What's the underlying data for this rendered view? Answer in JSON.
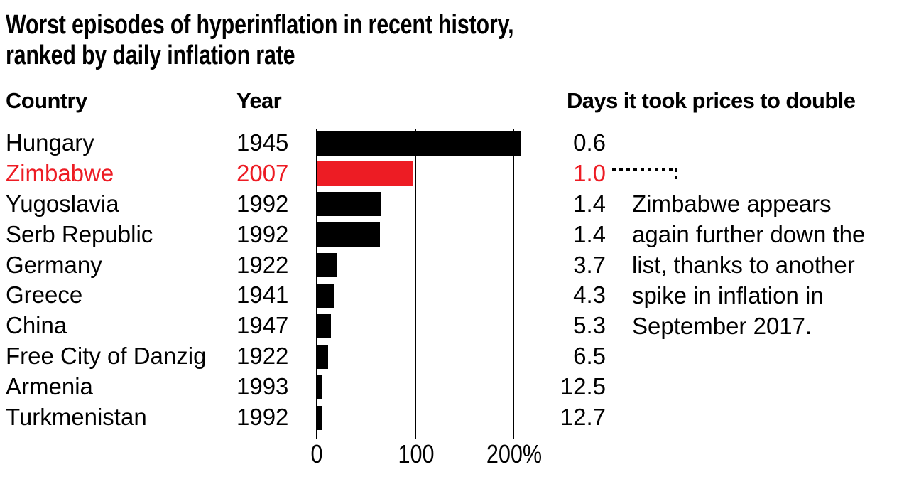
{
  "chart_data": {
    "type": "bar",
    "title": "Worst episodes of hyperinflation in recent history, ranked by daily inflation rate",
    "title_lines": [
      "Worst episodes of hyperinflation in recent history,",
      "ranked by daily inflation rate"
    ],
    "columns": {
      "country": "Country",
      "year": "Year",
      "days": "Days it took prices to double"
    },
    "x_axis": {
      "tick_labels": [
        "0",
        "100",
        "200%"
      ],
      "tick_values": [
        0,
        100,
        200
      ],
      "range": [
        0,
        200
      ],
      "unit": "% daily inflation rate",
      "grid": true
    },
    "rows": [
      {
        "country": "Hungary",
        "year": "1945",
        "daily_inflation_pct": 207,
        "days_to_double": "0.6",
        "highlight": false
      },
      {
        "country": "Zimbabwe",
        "year": "2007",
        "daily_inflation_pct": 98,
        "days_to_double": "1.0",
        "highlight": true
      },
      {
        "country": "Yugoslavia",
        "year": "1992",
        "daily_inflation_pct": 64.6,
        "days_to_double": "1.4",
        "highlight": false
      },
      {
        "country": "Serb Republic",
        "year": "1992",
        "daily_inflation_pct": 64.3,
        "days_to_double": "1.4",
        "highlight": false
      },
      {
        "country": "Germany",
        "year": "1922",
        "daily_inflation_pct": 20.9,
        "days_to_double": "3.7",
        "highlight": false
      },
      {
        "country": "Greece",
        "year": "1941",
        "daily_inflation_pct": 17.9,
        "days_to_double": "4.3",
        "highlight": false
      },
      {
        "country": "China",
        "year": "1947",
        "daily_inflation_pct": 14.1,
        "days_to_double": "5.3",
        "highlight": false
      },
      {
        "country": "Free City of Danzig",
        "year": "1922",
        "daily_inflation_pct": 11.4,
        "days_to_double": "6.5",
        "highlight": false
      },
      {
        "country": "Armenia",
        "year": "1993",
        "daily_inflation_pct": 5.5,
        "days_to_double": "12.5",
        "highlight": false
      },
      {
        "country": "Turkmenistan",
        "year": "1992",
        "daily_inflation_pct": 5.7,
        "days_to_double": "12.7",
        "highlight": false
      }
    ],
    "annotation": {
      "lines": [
        "Zimbabwe appears",
        "again further down the",
        "list, thanks to another",
        "spike in inflation in",
        "September 2017."
      ],
      "text": "Zimbabwe appears again further down the list, thanks to another spike in inflation in September 2017."
    },
    "colors": {
      "bar": "#000000",
      "highlight": "#ed1c24",
      "text": "#000000",
      "background": "#ffffff"
    },
    "legend": null
  }
}
